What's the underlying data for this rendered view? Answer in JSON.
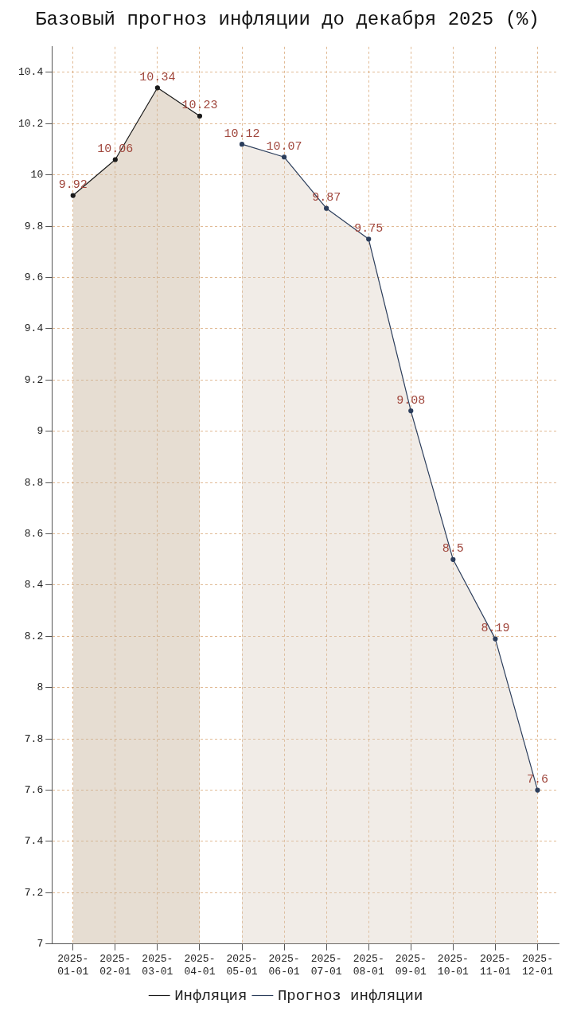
{
  "chart_data": {
    "type": "area",
    "title": "Базовый прогноз инфляции до декабря 2025 (%)",
    "categories": [
      "2025-01-01",
      "2025-02-01",
      "2025-03-01",
      "2025-04-01",
      "2025-05-01",
      "2025-06-01",
      "2025-07-01",
      "2025-08-01",
      "2025-09-01",
      "2025-10-01",
      "2025-11-01",
      "2025-12-01"
    ],
    "series": [
      {
        "name": "Инфляция",
        "color": "#1a1a1a",
        "values": [
          9.92,
          10.06,
          10.34,
          10.23,
          null,
          null,
          null,
          null,
          null,
          null,
          null,
          null
        ]
      },
      {
        "name": "Прогноз инфляции",
        "color": "#2c3e5c",
        "values": [
          null,
          null,
          null,
          null,
          10.12,
          10.07,
          9.87,
          9.75,
          9.08,
          8.5,
          8.19,
          7.6
        ]
      }
    ],
    "ylim": [
      7,
      10.5
    ],
    "yticks": [
      7,
      7.2,
      7.4,
      7.6,
      7.8,
      8,
      8.2,
      8.4,
      8.6,
      8.8,
      9,
      9.2,
      9.4,
      9.6,
      9.8,
      10,
      10.2,
      10.4
    ],
    "grid": true,
    "legend": "bottom",
    "marker": "circle",
    "line_style": "solid",
    "data_labels": true
  }
}
